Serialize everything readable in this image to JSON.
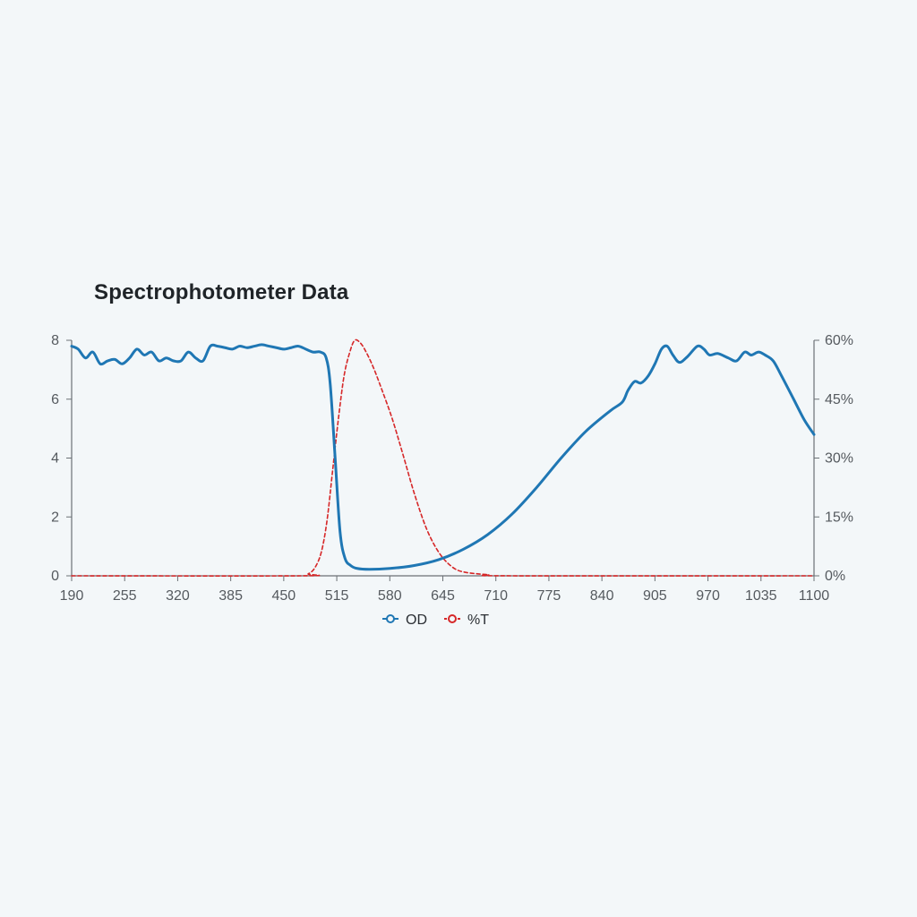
{
  "chart_data": {
    "type": "line",
    "title": "Spectrophotometer Data",
    "xlabel": "",
    "ylabel": "",
    "y2label": "",
    "xlim": [
      190,
      1100
    ],
    "ylim": [
      0,
      8
    ],
    "y2lim": [
      0,
      60
    ],
    "x_ticks": [
      190,
      255,
      320,
      385,
      450,
      515,
      580,
      645,
      710,
      775,
      840,
      905,
      970,
      1035,
      1100
    ],
    "y_ticks": [
      0,
      2,
      4,
      6,
      8
    ],
    "y2_ticks": [
      "0%",
      "15%",
      "30%",
      "45%",
      "60%"
    ],
    "legend_position": "bottom-center",
    "grid": false,
    "series": [
      {
        "name": "OD",
        "axis": "left",
        "color": "#1f77b4",
        "style": "solid",
        "points": [
          [
            190,
            7.8
          ],
          [
            198,
            7.7
          ],
          [
            207,
            7.4
          ],
          [
            216,
            7.6
          ],
          [
            225,
            7.2
          ],
          [
            234,
            7.3
          ],
          [
            243,
            7.35
          ],
          [
            252,
            7.2
          ],
          [
            261,
            7.4
          ],
          [
            270,
            7.7
          ],
          [
            279,
            7.5
          ],
          [
            288,
            7.6
          ],
          [
            297,
            7.3
          ],
          [
            306,
            7.4
          ],
          [
            315,
            7.3
          ],
          [
            324,
            7.3
          ],
          [
            333,
            7.6
          ],
          [
            342,
            7.4
          ],
          [
            351,
            7.3
          ],
          [
            360,
            7.8
          ],
          [
            369,
            7.8
          ],
          [
            378,
            7.75
          ],
          [
            387,
            7.7
          ],
          [
            396,
            7.8
          ],
          [
            405,
            7.75
          ],
          [
            414,
            7.8
          ],
          [
            423,
            7.85
          ],
          [
            432,
            7.8
          ],
          [
            441,
            7.75
          ],
          [
            450,
            7.7
          ],
          [
            459,
            7.75
          ],
          [
            468,
            7.8
          ],
          [
            477,
            7.7
          ],
          [
            486,
            7.6
          ],
          [
            495,
            7.6
          ],
          [
            502,
            7.4
          ],
          [
            507,
            6.5
          ],
          [
            513,
            4.0
          ],
          [
            519,
            1.5
          ],
          [
            525,
            0.6
          ],
          [
            532,
            0.35
          ],
          [
            540,
            0.25
          ],
          [
            555,
            0.22
          ],
          [
            580,
            0.25
          ],
          [
            610,
            0.35
          ],
          [
            640,
            0.55
          ],
          [
            670,
            0.9
          ],
          [
            700,
            1.4
          ],
          [
            730,
            2.1
          ],
          [
            760,
            3.0
          ],
          [
            790,
            4.0
          ],
          [
            820,
            4.9
          ],
          [
            850,
            5.6
          ],
          [
            865,
            5.9
          ],
          [
            872,
            6.3
          ],
          [
            880,
            6.6
          ],
          [
            888,
            6.55
          ],
          [
            897,
            6.8
          ],
          [
            905,
            7.2
          ],
          [
            913,
            7.7
          ],
          [
            920,
            7.8
          ],
          [
            927,
            7.5
          ],
          [
            935,
            7.25
          ],
          [
            945,
            7.45
          ],
          [
            957,
            7.8
          ],
          [
            965,
            7.7
          ],
          [
            972,
            7.5
          ],
          [
            982,
            7.55
          ],
          [
            995,
            7.4
          ],
          [
            1005,
            7.3
          ],
          [
            1015,
            7.6
          ],
          [
            1023,
            7.5
          ],
          [
            1032,
            7.6
          ],
          [
            1040,
            7.5
          ],
          [
            1050,
            7.3
          ],
          [
            1060,
            6.8
          ],
          [
            1075,
            6.0
          ],
          [
            1088,
            5.3
          ],
          [
            1100,
            4.8
          ]
        ]
      },
      {
        "name": "%T",
        "axis": "right",
        "color": "#d62728",
        "style": "dashed",
        "points": [
          [
            190,
            0
          ],
          [
            470,
            0
          ],
          [
            480,
            0.5
          ],
          [
            488,
            2
          ],
          [
            496,
            6
          ],
          [
            503,
            14
          ],
          [
            510,
            27
          ],
          [
            517,
            40
          ],
          [
            524,
            51
          ],
          [
            531,
            57
          ],
          [
            537,
            60
          ],
          [
            544,
            59.3
          ],
          [
            551,
            57
          ],
          [
            560,
            53
          ],
          [
            571,
            47
          ],
          [
            583,
            40
          ],
          [
            596,
            31
          ],
          [
            610,
            21
          ],
          [
            625,
            12
          ],
          [
            640,
            6
          ],
          [
            655,
            2.5
          ],
          [
            670,
            1
          ],
          [
            700,
            0.3
          ],
          [
            730,
            0
          ],
          [
            1100,
            0
          ]
        ]
      }
    ]
  }
}
